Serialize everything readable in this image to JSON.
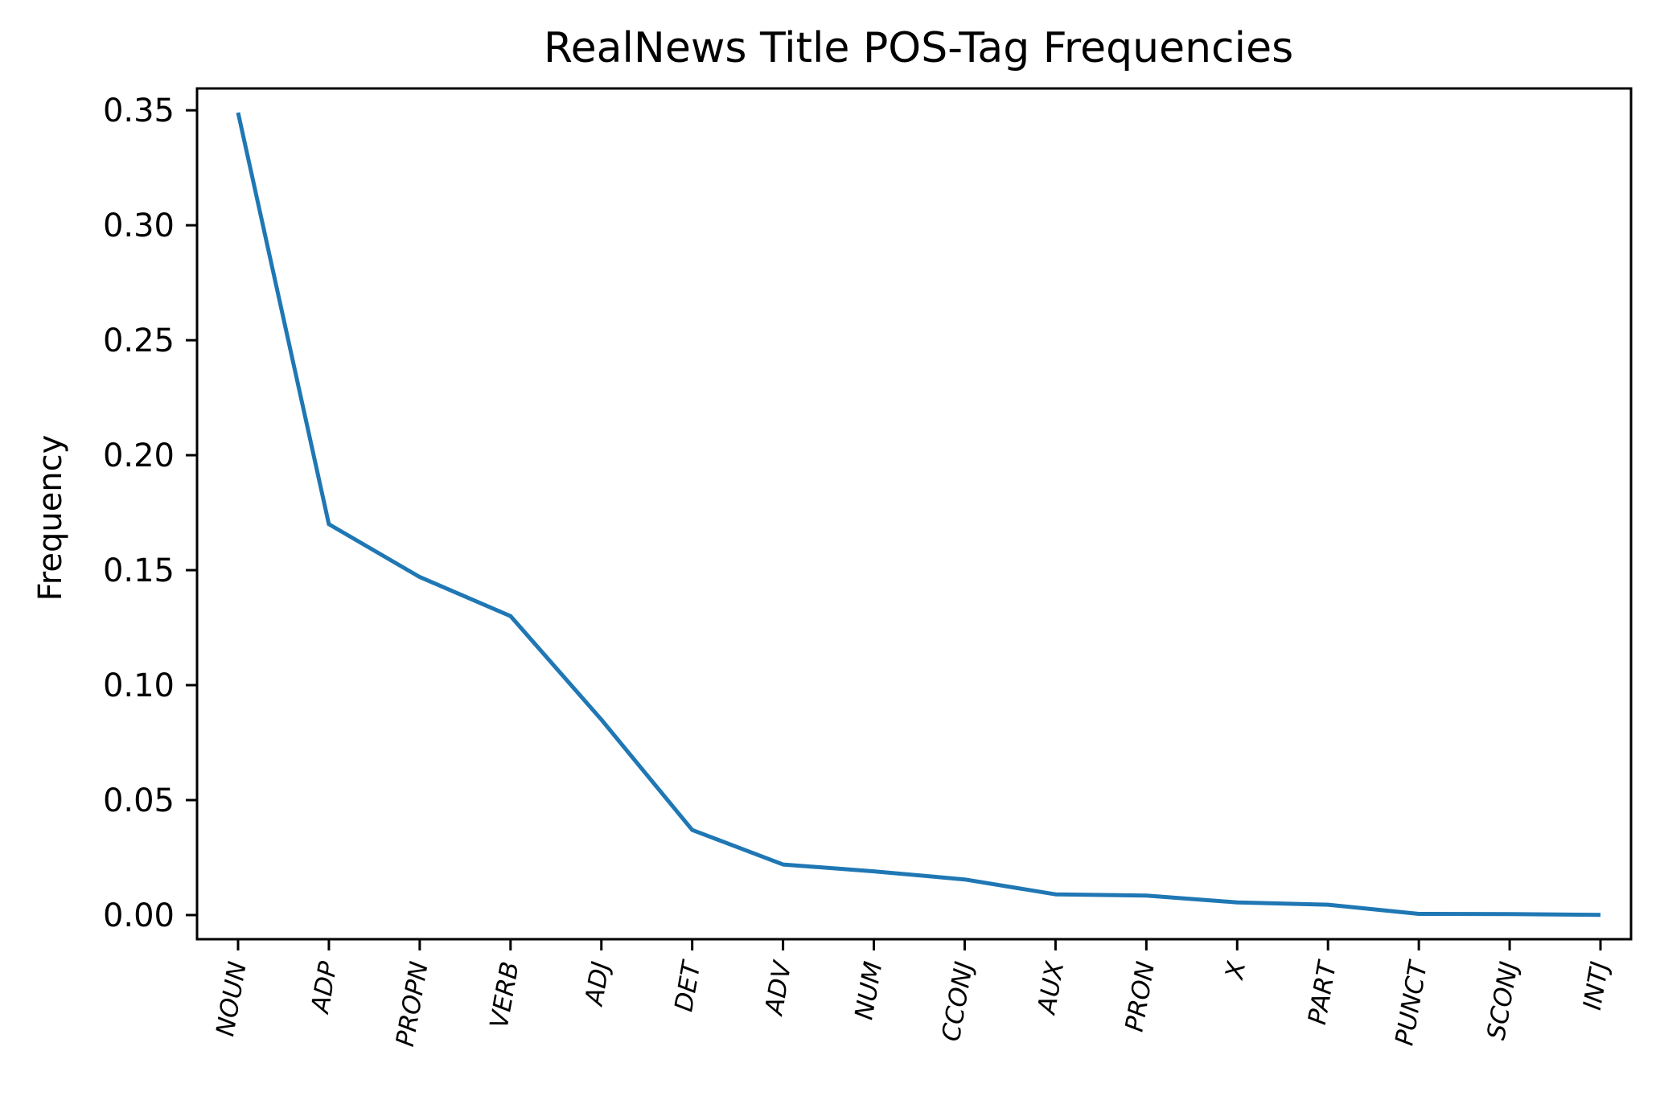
{
  "chart_data": {
    "type": "line",
    "title": "RealNews Title POS-Tag Frequencies",
    "xlabel": "",
    "ylabel": "Frequency",
    "categories": [
      "NOUN",
      "ADP",
      "PROPN",
      "VERB",
      "ADJ",
      "DET",
      "ADV",
      "NUM",
      "CCONJ",
      "AUX",
      "PRON",
      "X",
      "PART",
      "PUNCT",
      "SCONJ",
      "INTJ"
    ],
    "series": [
      {
        "values": [
          0.349,
          0.17,
          0.147,
          0.13,
          0.085,
          0.037,
          0.022,
          0.019,
          0.0155,
          0.009,
          0.0085,
          0.0055,
          0.0045,
          0.0005,
          0.0004,
          0.0001
        ]
      }
    ],
    "yticks": [
      0.0,
      0.05,
      0.1,
      0.15,
      0.2,
      0.25,
      0.3,
      0.35
    ],
    "ytick_labels": [
      "0.00",
      "0.05",
      "0.10",
      "0.15",
      "0.20",
      "0.25",
      "0.30",
      "0.35"
    ],
    "ylim": [
      -0.0105,
      0.3595
    ],
    "xtick_rotation_deg": -80,
    "grid": false,
    "legend": "none",
    "colors": {
      "line": "#1f77b4",
      "axes": "#000000",
      "background": "#ffffff"
    }
  }
}
